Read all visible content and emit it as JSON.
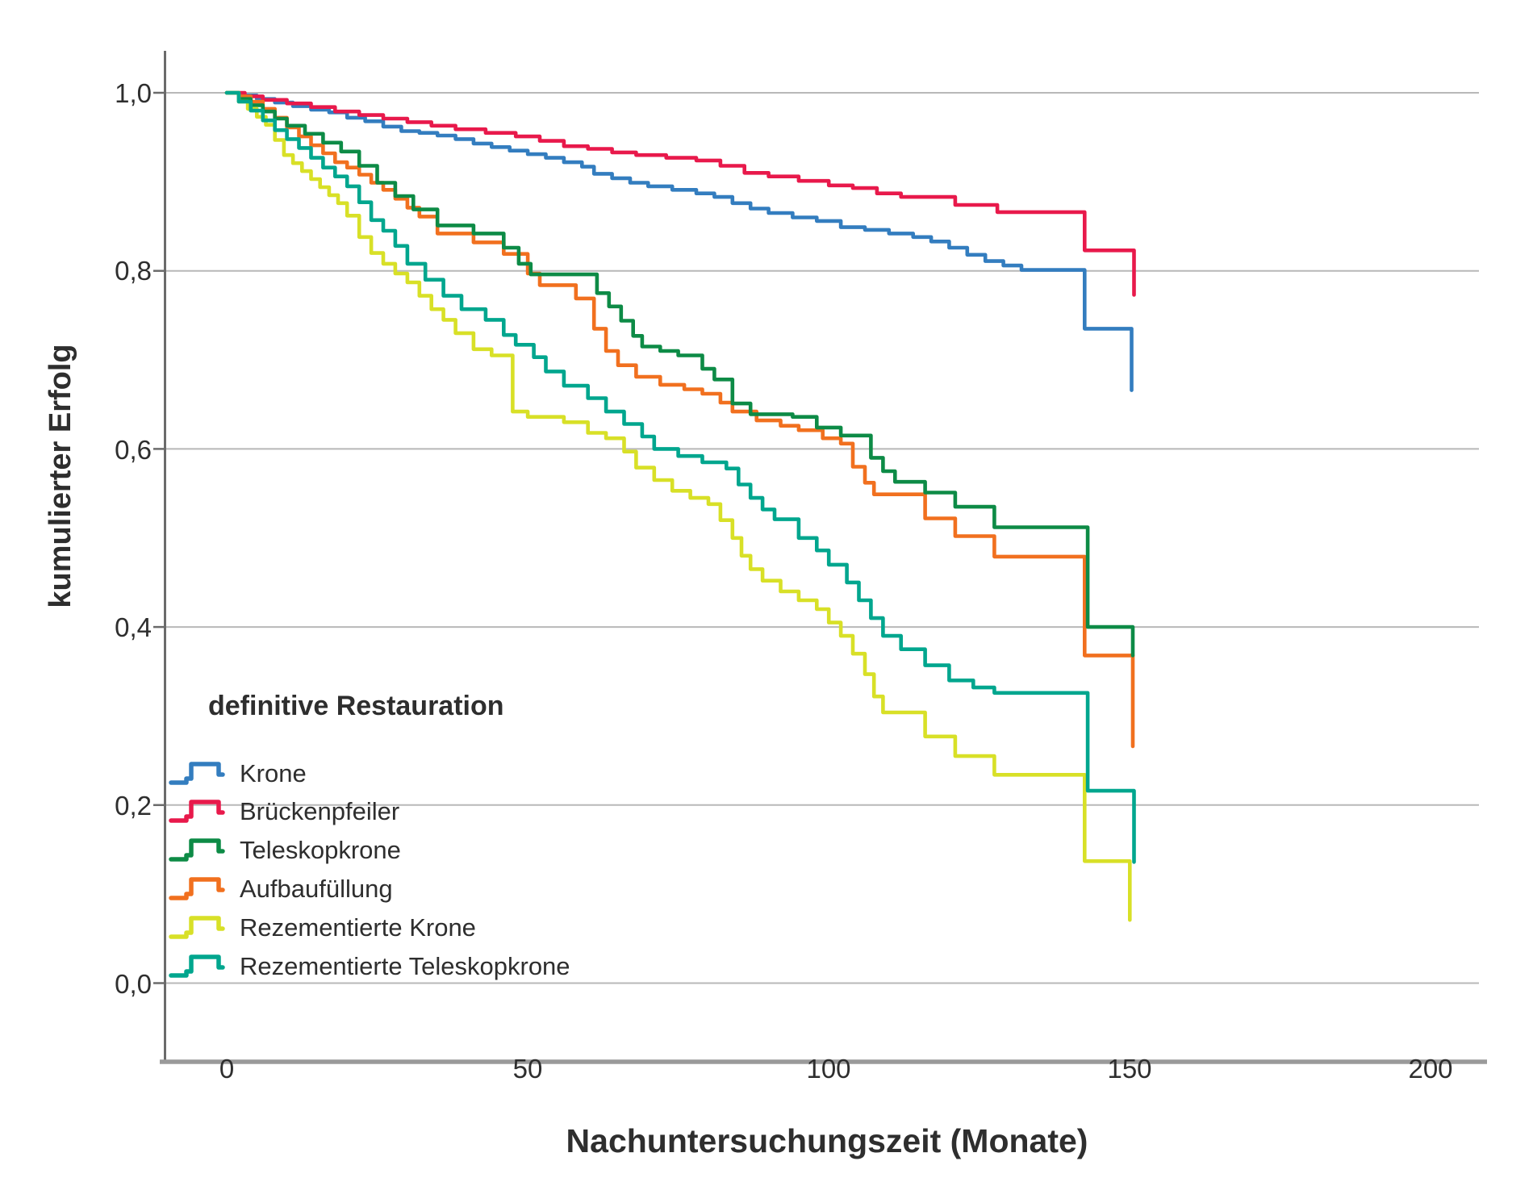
{
  "y_axis": {
    "label": "kumulierter Erfolg",
    "ticks": [
      "1,0",
      "0,8",
      "0,6",
      "0,4",
      "0,2",
      "0,0"
    ],
    "tick_values": [
      1.0,
      0.8,
      0.6,
      0.4,
      0.2,
      0.0
    ]
  },
  "x_axis": {
    "label": "Nachuntersuchungszeit (Monate)",
    "ticks": [
      "0",
      "50",
      "100",
      "150",
      "200"
    ],
    "tick_values": [
      0,
      50,
      100,
      150,
      200
    ]
  },
  "legend": {
    "heading": "definitive Restauration",
    "items": [
      {
        "label": "Krone",
        "color": "#337dbf"
      },
      {
        "label": "Brückenpfeiler",
        "color": "#e8194b"
      },
      {
        "label": "Teleskopkrone",
        "color": "#0d8b46"
      },
      {
        "label": "Aufbaufüllung",
        "color": "#f1701f"
      },
      {
        "label": "Rezementierte Krone",
        "color": "#d8e027"
      },
      {
        "label": "Rezementierte Teleskopkrone",
        "color": "#00a68e"
      }
    ]
  },
  "colors": {
    "gridline": "#b8b8b8",
    "y_axis_line": "#6b6b6b",
    "x_axis_line": "#9a9a9a",
    "text": "#2e2e2e"
  },
  "chart_data": {
    "type": "line",
    "subtype": "kaplan-meier-step",
    "title": "",
    "xlabel": "Nachuntersuchungszeit (Monate)",
    "ylabel": "kumulierter Erfolg",
    "xlim": [
      -10.5,
      208
    ],
    "ylim": [
      -0.09,
      1.045
    ],
    "grid": "horizontal",
    "legend_position": "inside-left-bottom",
    "x_units": "Monate",
    "series": [
      {
        "name": "Krone",
        "color": "#337dbf",
        "points": [
          [
            0,
            1
          ],
          [
            2,
            0.997
          ],
          [
            5,
            0.993
          ],
          [
            8,
            0.989
          ],
          [
            11,
            0.985
          ],
          [
            14,
            0.981
          ],
          [
            17,
            0.978
          ],
          [
            20,
            0.972
          ],
          [
            23,
            0.968
          ],
          [
            26,
            0.962
          ],
          [
            29,
            0.957
          ],
          [
            32,
            0.955
          ],
          [
            35,
            0.952
          ],
          [
            38,
            0.948
          ],
          [
            41,
            0.943
          ],
          [
            44,
            0.939
          ],
          [
            47,
            0.935
          ],
          [
            50,
            0.931
          ],
          [
            53,
            0.927
          ],
          [
            56,
            0.922
          ],
          [
            59,
            0.917
          ],
          [
            61,
            0.909
          ],
          [
            64,
            0.904
          ],
          [
            67,
            0.899
          ],
          [
            70,
            0.895
          ],
          [
            74,
            0.891
          ],
          [
            78,
            0.887
          ],
          [
            81,
            0.883
          ],
          [
            84,
            0.876
          ],
          [
            87,
            0.87
          ],
          [
            90,
            0.865
          ],
          [
            94,
            0.86
          ],
          [
            98,
            0.856
          ],
          [
            102,
            0.849
          ],
          [
            106,
            0.846
          ],
          [
            110,
            0.842
          ],
          [
            114,
            0.838
          ],
          [
            117,
            0.833
          ],
          [
            120,
            0.826
          ],
          [
            123,
            0.818
          ],
          [
            126,
            0.811
          ],
          [
            129,
            0.806
          ],
          [
            132,
            0.801
          ],
          [
            142.5,
            0.735
          ],
          [
            150.3,
            0.666
          ]
        ]
      },
      {
        "name": "Brückenpfeiler",
        "color": "#e8194b",
        "points": [
          [
            0,
            1
          ],
          [
            3,
            0.996
          ],
          [
            6,
            0.992
          ],
          [
            10,
            0.988
          ],
          [
            14,
            0.984
          ],
          [
            18,
            0.979
          ],
          [
            22,
            0.975
          ],
          [
            26,
            0.971
          ],
          [
            30,
            0.967
          ],
          [
            34,
            0.963
          ],
          [
            38,
            0.959
          ],
          [
            43,
            0.955
          ],
          [
            48,
            0.951
          ],
          [
            52,
            0.946
          ],
          [
            56,
            0.94
          ],
          [
            60,
            0.937
          ],
          [
            64,
            0.933
          ],
          [
            68,
            0.93
          ],
          [
            73,
            0.927
          ],
          [
            78,
            0.924
          ],
          [
            82,
            0.918
          ],
          [
            86,
            0.91
          ],
          [
            90,
            0.906
          ],
          [
            95,
            0.901
          ],
          [
            100,
            0.896
          ],
          [
            104,
            0.893
          ],
          [
            108,
            0.887
          ],
          [
            112,
            0.883
          ],
          [
            121,
            0.874
          ],
          [
            128,
            0.866
          ],
          [
            142.5,
            0.823
          ],
          [
            150.7,
            0.773
          ]
        ]
      },
      {
        "name": "Aufbaufüllung",
        "color": "#f1701f",
        "points": [
          [
            0,
            1
          ],
          [
            2,
            0.996
          ],
          [
            4,
            0.99
          ],
          [
            6,
            0.982
          ],
          [
            8,
            0.972
          ],
          [
            10,
            0.961
          ],
          [
            12,
            0.951
          ],
          [
            14,
            0.941
          ],
          [
            16,
            0.932
          ],
          [
            18,
            0.922
          ],
          [
            20,
            0.916
          ],
          [
            22,
            0.908
          ],
          [
            24,
            0.899
          ],
          [
            26,
            0.891
          ],
          [
            28,
            0.881
          ],
          [
            30,
            0.871
          ],
          [
            32,
            0.861
          ],
          [
            35,
            0.842
          ],
          [
            41,
            0.832
          ],
          [
            46,
            0.819
          ],
          [
            50,
            0.797
          ],
          [
            52,
            0.784
          ],
          [
            58,
            0.769
          ],
          [
            61,
            0.735
          ],
          [
            63,
            0.71
          ],
          [
            65,
            0.694
          ],
          [
            68,
            0.681
          ],
          [
            72,
            0.672
          ],
          [
            76,
            0.667
          ],
          [
            79,
            0.662
          ],
          [
            82,
            0.652
          ],
          [
            84,
            0.642
          ],
          [
            88,
            0.632
          ],
          [
            92,
            0.626
          ],
          [
            95,
            0.621
          ],
          [
            99,
            0.612
          ],
          [
            102,
            0.606
          ],
          [
            104,
            0.58
          ],
          [
            106,
            0.562
          ],
          [
            107.5,
            0.549
          ],
          [
            116,
            0.522
          ],
          [
            121,
            0.502
          ],
          [
            127.5,
            0.479
          ],
          [
            142.5,
            0.368
          ],
          [
            150.5,
            0.266
          ]
        ]
      },
      {
        "name": "Teleskopkrone",
        "color": "#0d8b46",
        "points": [
          [
            0,
            1
          ],
          [
            2,
            0.993
          ],
          [
            4,
            0.986
          ],
          [
            6,
            0.979
          ],
          [
            8,
            0.971
          ],
          [
            10,
            0.963
          ],
          [
            13,
            0.954
          ],
          [
            16,
            0.944
          ],
          [
            19,
            0.934
          ],
          [
            22,
            0.918
          ],
          [
            25,
            0.899
          ],
          [
            28,
            0.884
          ],
          [
            31,
            0.869
          ],
          [
            35,
            0.851
          ],
          [
            41,
            0.842
          ],
          [
            46,
            0.826
          ],
          [
            48.5,
            0.808
          ],
          [
            50.5,
            0.796
          ],
          [
            61.5,
            0.775
          ],
          [
            63.5,
            0.76
          ],
          [
            65.5,
            0.744
          ],
          [
            67.5,
            0.727
          ],
          [
            69,
            0.715
          ],
          [
            72,
            0.71
          ],
          [
            75,
            0.705
          ],
          [
            79,
            0.69
          ],
          [
            81,
            0.678
          ],
          [
            84,
            0.651
          ],
          [
            87,
            0.639
          ],
          [
            94,
            0.636
          ],
          [
            98,
            0.624
          ],
          [
            102,
            0.615
          ],
          [
            107,
            0.59
          ],
          [
            109,
            0.575
          ],
          [
            111,
            0.563
          ],
          [
            116,
            0.551
          ],
          [
            121,
            0.535
          ],
          [
            127.5,
            0.512
          ],
          [
            143,
            0.4
          ],
          [
            150.5,
            0.368
          ]
        ]
      },
      {
        "name": "Rezementierte Krone",
        "color": "#d8e027",
        "points": [
          [
            0,
            1
          ],
          [
            2,
            0.99
          ],
          [
            3.5,
            0.982
          ],
          [
            5,
            0.973
          ],
          [
            6.5,
            0.964
          ],
          [
            8,
            0.947
          ],
          [
            9.5,
            0.93
          ],
          [
            11,
            0.921
          ],
          [
            12.5,
            0.912
          ],
          [
            14,
            0.903
          ],
          [
            15.5,
            0.894
          ],
          [
            17,
            0.885
          ],
          [
            18.5,
            0.876
          ],
          [
            20,
            0.862
          ],
          [
            22,
            0.838
          ],
          [
            24,
            0.82
          ],
          [
            26,
            0.808
          ],
          [
            28,
            0.797
          ],
          [
            30,
            0.787
          ],
          [
            32,
            0.772
          ],
          [
            34,
            0.757
          ],
          [
            36,
            0.745
          ],
          [
            38,
            0.73
          ],
          [
            41,
            0.712
          ],
          [
            44,
            0.705
          ],
          [
            47.5,
            0.642
          ],
          [
            50,
            0.636
          ],
          [
            56,
            0.63
          ],
          [
            60,
            0.618
          ],
          [
            63,
            0.612
          ],
          [
            66,
            0.597
          ],
          [
            68,
            0.579
          ],
          [
            71,
            0.565
          ],
          [
            74,
            0.553
          ],
          [
            77,
            0.545
          ],
          [
            80,
            0.538
          ],
          [
            82,
            0.52
          ],
          [
            84,
            0.5
          ],
          [
            85.5,
            0.48
          ],
          [
            87,
            0.465
          ],
          [
            89,
            0.452
          ],
          [
            92,
            0.44
          ],
          [
            95,
            0.43
          ],
          [
            98,
            0.42
          ],
          [
            100,
            0.405
          ],
          [
            102,
            0.39
          ],
          [
            104,
            0.37
          ],
          [
            106,
            0.347
          ],
          [
            107.5,
            0.322
          ],
          [
            109,
            0.304
          ],
          [
            116,
            0.277
          ],
          [
            121,
            0.255
          ],
          [
            127.5,
            0.234
          ],
          [
            142.5,
            0.137
          ],
          [
            150,
            0.071
          ]
        ]
      },
      {
        "name": "Rezementierte Teleskopkrone",
        "color": "#00a68e",
        "points": [
          [
            0,
            1
          ],
          [
            2,
            0.99
          ],
          [
            4,
            0.98
          ],
          [
            6,
            0.969
          ],
          [
            8,
            0.958
          ],
          [
            10,
            0.948
          ],
          [
            12,
            0.938
          ],
          [
            14,
            0.927
          ],
          [
            16,
            0.916
          ],
          [
            18,
            0.906
          ],
          [
            20,
            0.895
          ],
          [
            22,
            0.877
          ],
          [
            24,
            0.857
          ],
          [
            26,
            0.845
          ],
          [
            28,
            0.828
          ],
          [
            30,
            0.808
          ],
          [
            33,
            0.79
          ],
          [
            36,
            0.772
          ],
          [
            39,
            0.757
          ],
          [
            43,
            0.745
          ],
          [
            46,
            0.728
          ],
          [
            48,
            0.717
          ],
          [
            51,
            0.703
          ],
          [
            53,
            0.687
          ],
          [
            56,
            0.671
          ],
          [
            60,
            0.657
          ],
          [
            63,
            0.642
          ],
          [
            66,
            0.628
          ],
          [
            69,
            0.614
          ],
          [
            71,
            0.6
          ],
          [
            75,
            0.592
          ],
          [
            79,
            0.585
          ],
          [
            83,
            0.578
          ],
          [
            85,
            0.56
          ],
          [
            87,
            0.545
          ],
          [
            89,
            0.532
          ],
          [
            91,
            0.521
          ],
          [
            95,
            0.5
          ],
          [
            98,
            0.486
          ],
          [
            100,
            0.47
          ],
          [
            103,
            0.45
          ],
          [
            105,
            0.43
          ],
          [
            107,
            0.41
          ],
          [
            109,
            0.39
          ],
          [
            112,
            0.375
          ],
          [
            116,
            0.357
          ],
          [
            120,
            0.34
          ],
          [
            124,
            0.332
          ],
          [
            127.5,
            0.326
          ],
          [
            143,
            0.216
          ],
          [
            150.7,
            0.136
          ]
        ]
      }
    ]
  }
}
